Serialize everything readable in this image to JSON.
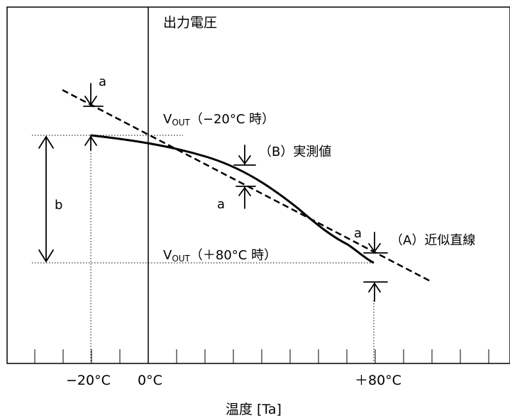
{
  "y_axis_label": "出力電圧",
  "x_axis_label": "温度 [Ta]",
  "x_ticks": {
    "minus20": "−20°C",
    "zero": "0°C",
    "plus80": "＋80°C"
  },
  "labels": {
    "a_top": "a",
    "a_mid": "a",
    "a_right": "a",
    "b": "b",
    "measured": "（B）実測値",
    "approx": "（A）近似直線",
    "vout_minus20_v": "V",
    "vout_minus20_sub": "OUT",
    "vout_minus20_rest": "（−20°C 時）",
    "vout_plus80_v": "V",
    "vout_plus80_sub": "OUT",
    "vout_plus80_rest": "（＋80°C 時）"
  }
}
